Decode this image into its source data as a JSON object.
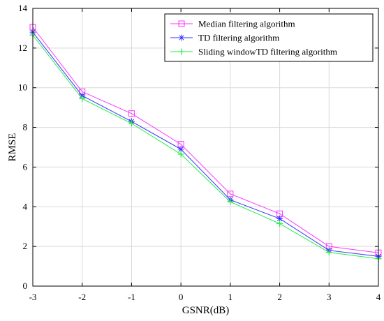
{
  "chart_data": {
    "type": "line",
    "xlabel": "GSNR(dB)",
    "ylabel": "RMSE",
    "x": [
      -3,
      -2,
      -1,
      0,
      1,
      2,
      3,
      4
    ],
    "xlim": [
      -3,
      4
    ],
    "ylim": [
      0,
      14
    ],
    "xticks": [
      "-3",
      "-2",
      "-1",
      "0",
      "1",
      "2",
      "3",
      "4"
    ],
    "yticks": [
      "0",
      "2",
      "4",
      "6",
      "8",
      "10",
      "12",
      "14"
    ],
    "grid": true,
    "legend_position": "top-right",
    "series": [
      {
        "name": "Median filtering algorithm",
        "color": "#ff33ff",
        "marker": "square",
        "values": [
          13.05,
          9.8,
          8.7,
          7.15,
          4.65,
          3.65,
          2.0,
          1.68
        ]
      },
      {
        "name": "TD filtering algorithm",
        "color": "#3333ff",
        "marker": "asterisk",
        "values": [
          12.8,
          9.6,
          8.3,
          6.9,
          4.35,
          3.4,
          1.8,
          1.5
        ]
      },
      {
        "name": "Sliding windowTD filtering algorithm",
        "color": "#22ee44",
        "marker": "plus",
        "values": [
          12.65,
          9.45,
          8.2,
          6.65,
          4.25,
          3.15,
          1.7,
          1.38
        ]
      }
    ]
  }
}
